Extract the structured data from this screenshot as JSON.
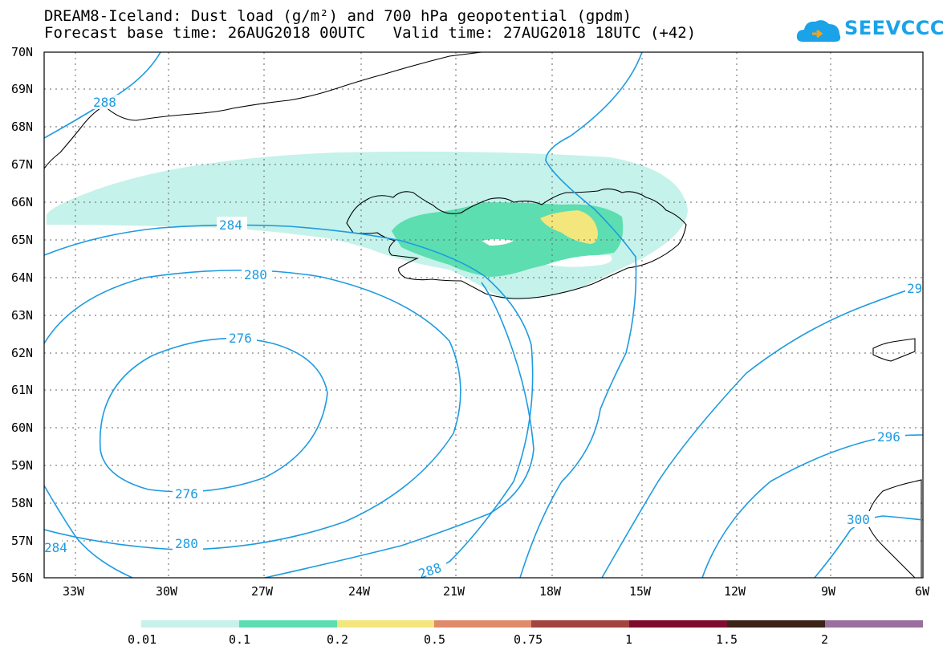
{
  "title": {
    "line1": "DREAM8-Iceland: Dust load (g/m²) and 700 hPa geopotential (gpdm)",
    "line2": "Forecast base time: 26AUG2018 00UTC   Valid time: 27AUG2018 18UTC (+42)"
  },
  "logo": {
    "text": "SEEVCCC",
    "icon": "cloud-icon"
  },
  "map": {
    "lat_labels": [
      "70N",
      "69N",
      "68N",
      "67N",
      "66N",
      "65N",
      "64N",
      "63N",
      "62N",
      "61N",
      "60N",
      "59N",
      "58N",
      "57N",
      "56N"
    ],
    "lon_labels": [
      "33W",
      "30W",
      "27W",
      "24W",
      "21W",
      "18W",
      "15W",
      "12W",
      "9W",
      "6W"
    ],
    "contour_color": "#1e9be0",
    "contour_labels": [
      "288",
      "284",
      "280",
      "276",
      "276",
      "280",
      "284",
      "288",
      "296",
      "300",
      "29"
    ]
  },
  "colorbar": {
    "labels": [
      "0.01",
      "0.1",
      "0.2",
      "0.5",
      "0.75",
      "1",
      "1.5",
      "2"
    ],
    "colors": [
      "#c5f2ea",
      "#5cdeb0",
      "#f3e67d",
      "#e08a6c",
      "#a0463e",
      "#7e0c2e",
      "#3b2416",
      "#9a6e9e"
    ]
  }
}
